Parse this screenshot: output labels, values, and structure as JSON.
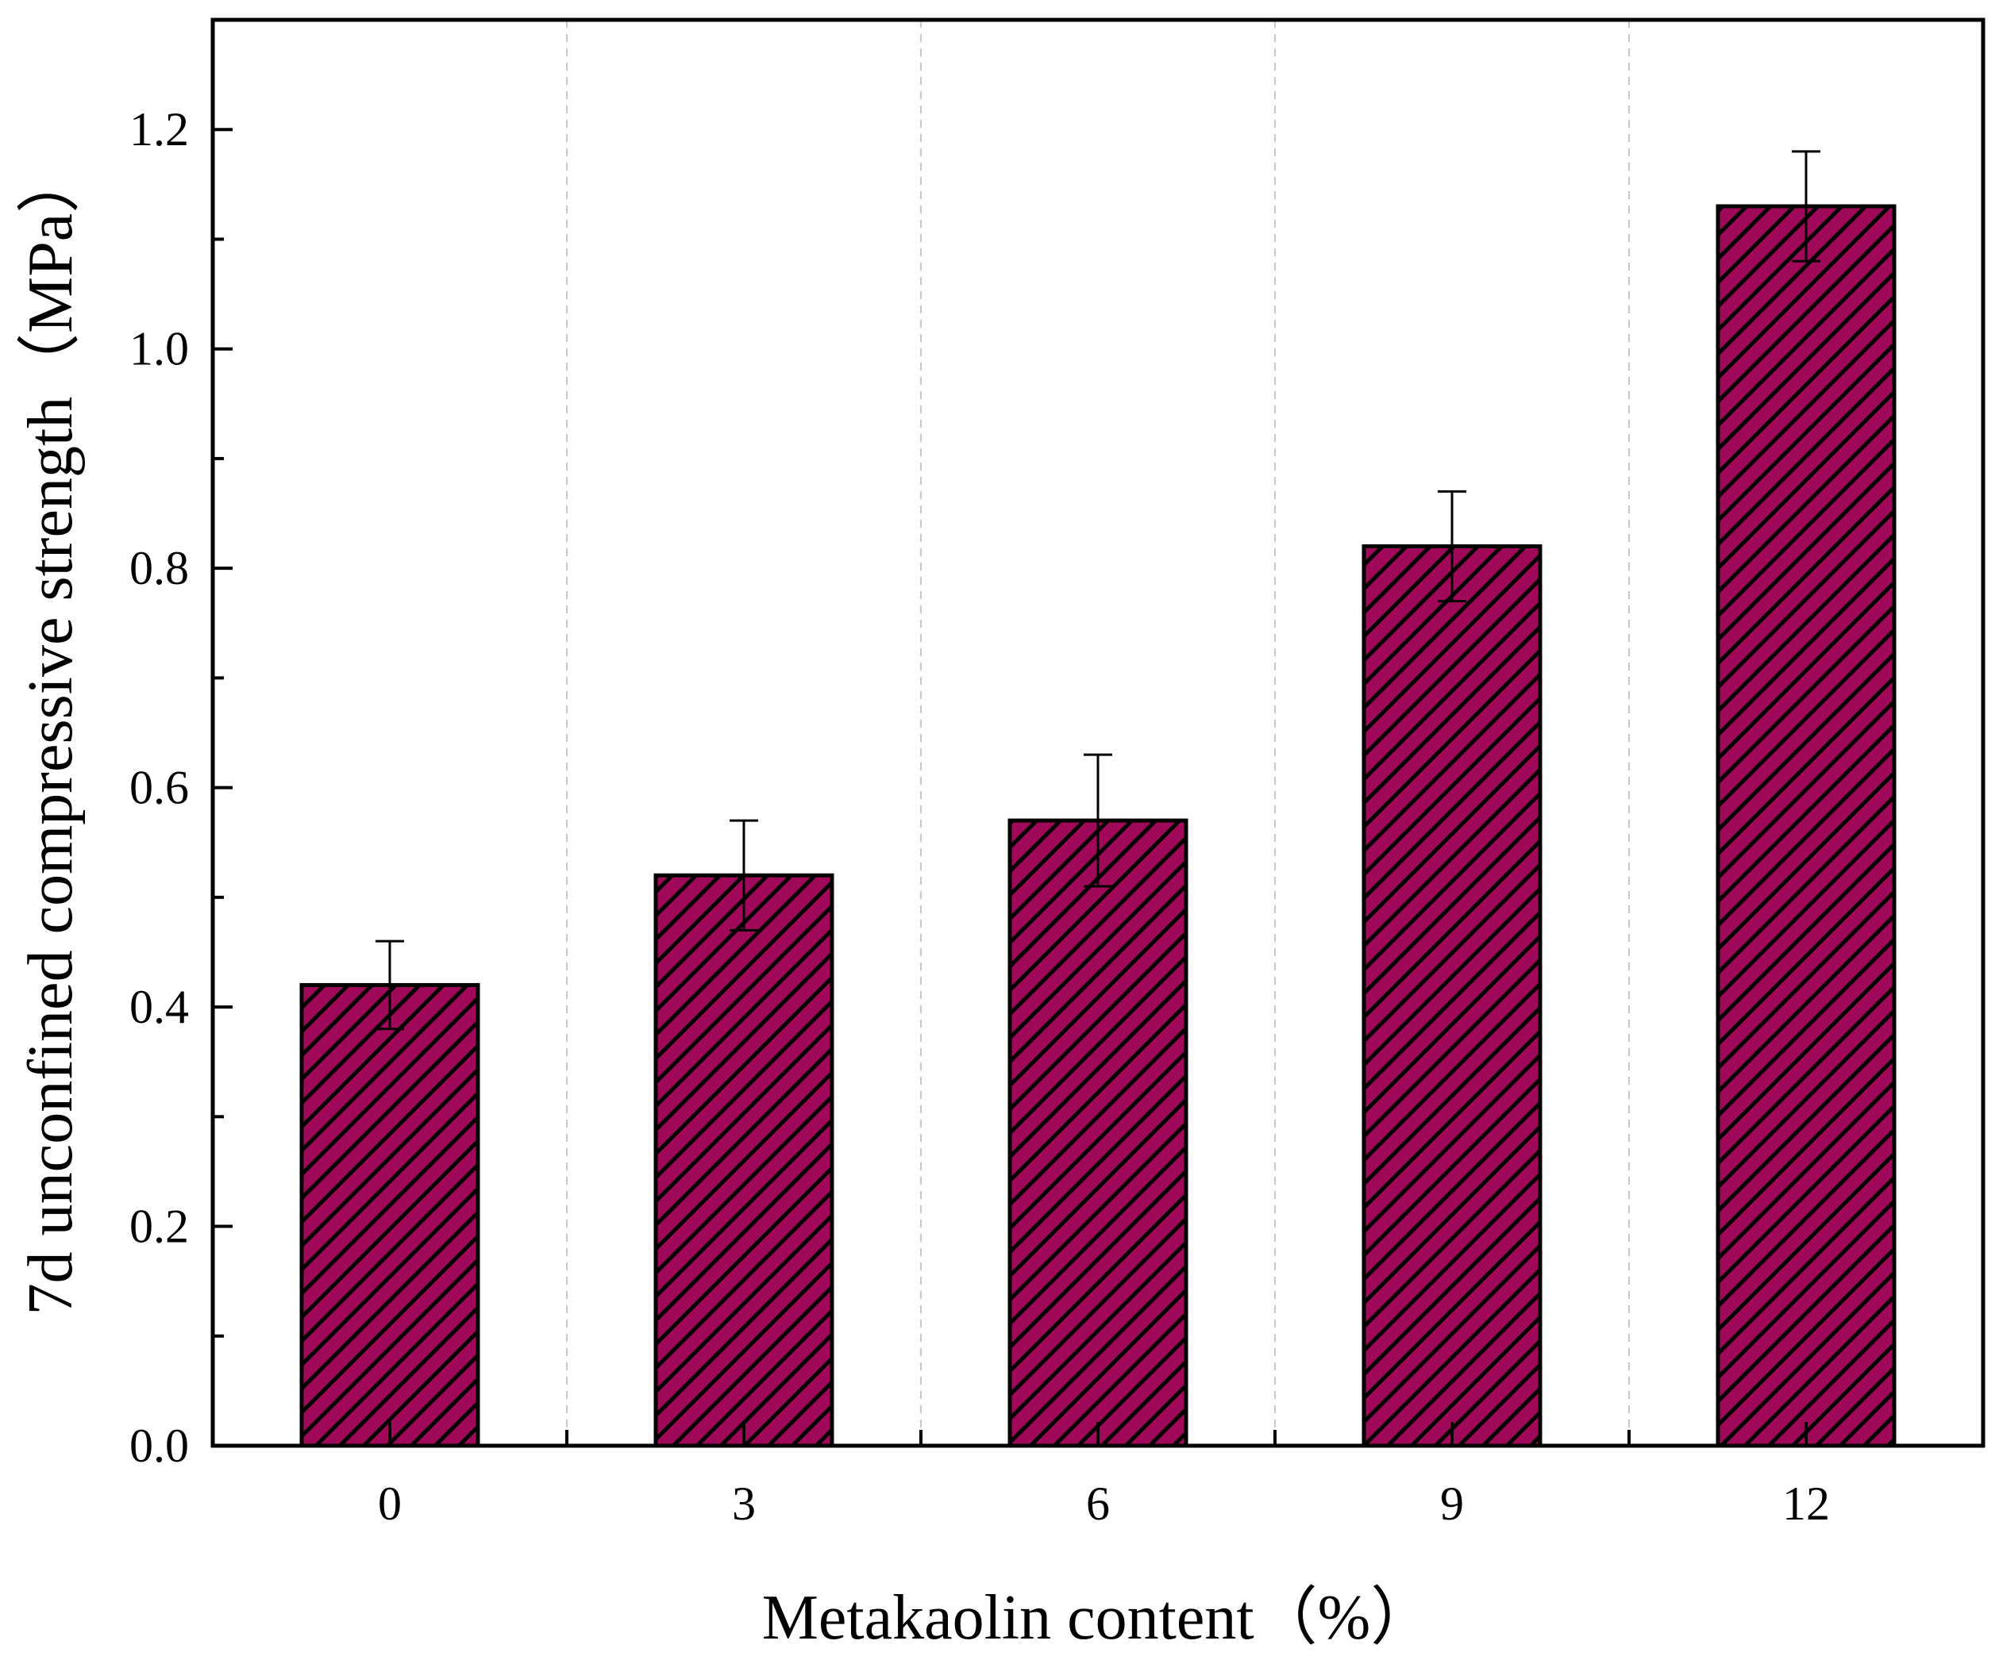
{
  "chart_data": {
    "type": "bar",
    "title": "",
    "xlabel": "Metakaolin content（%）",
    "ylabel": "7d unconfined compressive strength（MPa）",
    "categories": [
      "0",
      "3",
      "6",
      "9",
      "12"
    ],
    "values": [
      0.42,
      0.52,
      0.57,
      0.82,
      1.13
    ],
    "error_bars": [
      0.04,
      0.05,
      0.06,
      0.05,
      0.05
    ],
    "ylim": [
      0.0,
      1.3
    ],
    "yticks": [
      0.0,
      0.2,
      0.4,
      0.6,
      0.8,
      1.0,
      1.2
    ],
    "ytick_labels": [
      "0.0",
      "0.2",
      "0.4",
      "0.6",
      "0.8",
      "1.0",
      "1.2"
    ],
    "grid": "vertical-dashed",
    "bar_color": "#A0085A",
    "hatch_color": "#000000",
    "legend": "none"
  }
}
